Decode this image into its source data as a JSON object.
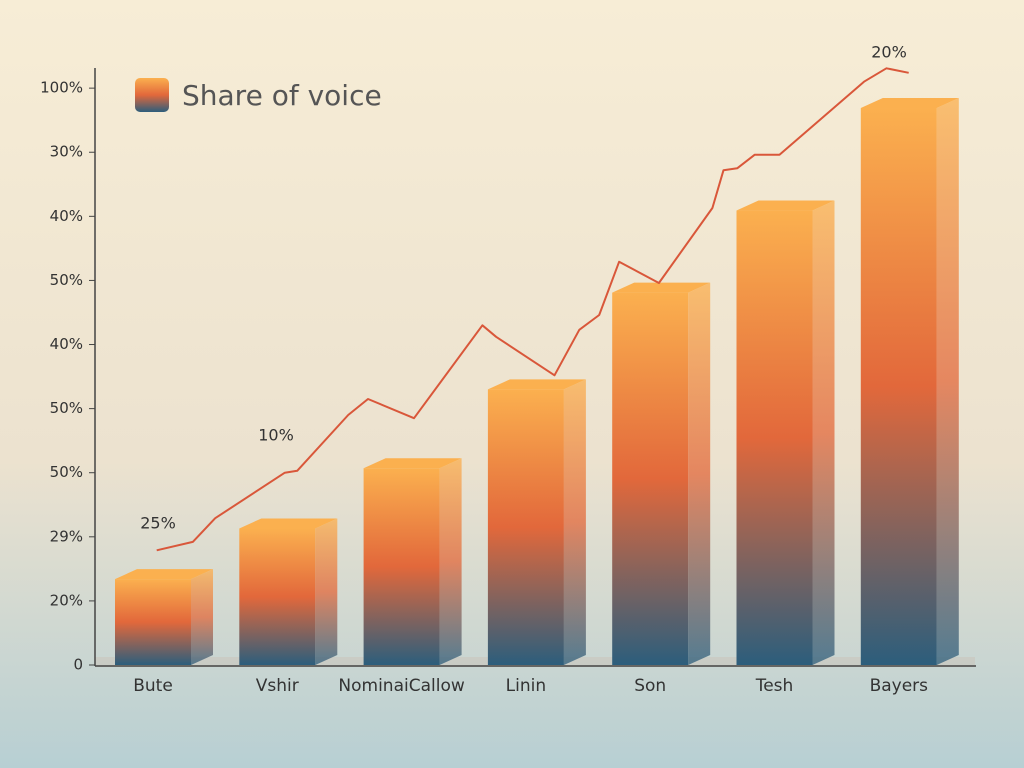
{
  "chart_data": {
    "type": "bar",
    "categories": [
      "Bute",
      "Vshir",
      "NominaiCallow",
      "Linin",
      "Son",
      "Tesh",
      "Bayers"
    ],
    "series": [
      {
        "name": "Share of voice",
        "colors": [
          "#fbb04f",
          "#e2683b",
          "#2c5e7c"
        ],
        "values": [
          1.34,
          2.13,
          3.07,
          4.3,
          5.81,
          7.09,
          8.69
        ]
      }
    ],
    "line": {
      "color": "#d9573a",
      "x": [
        0.03,
        0.32,
        0.5,
        1.06,
        1.16,
        1.57,
        1.73,
        2.1,
        2.65,
        2.76,
        3.23,
        3.43,
        3.59,
        3.75,
        4.07,
        4.5,
        4.59,
        4.7,
        4.84,
        5.04,
        5.72,
        5.9,
        6.08
      ],
      "values": [
        1.79,
        1.92,
        2.29,
        3.0,
        3.03,
        3.9,
        4.15,
        3.85,
        5.3,
        5.12,
        4.52,
        5.23,
        5.46,
        6.29,
        5.96,
        7.13,
        7.72,
        7.75,
        7.96,
        7.96,
        9.1,
        9.31,
        9.24
      ]
    },
    "annotations": [
      "25%",
      "10%",
      "20%"
    ],
    "ylim": [
      0,
      9.4
    ],
    "yticks": [
      0,
      {
        "value": 1,
        "label": "20%"
      },
      {
        "value": 2,
        "label": "29%"
      },
      {
        "value": 3,
        "label": "50%"
      },
      {
        "value": 4,
        "label": "50%"
      },
      {
        "value": 5,
        "label": "40%"
      },
      {
        "value": 6,
        "label": "50%"
      },
      {
        "value": 7,
        "label": "40%"
      },
      {
        "value": 8,
        "label": "30%"
      },
      {
        "value": 9,
        "label": "100%"
      }
    ]
  }
}
